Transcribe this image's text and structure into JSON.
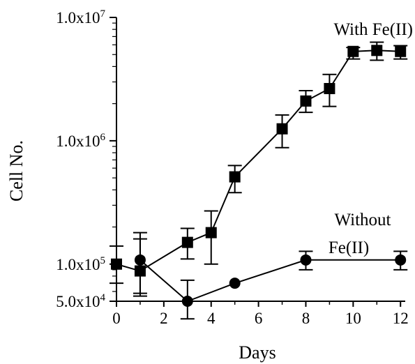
{
  "chart_data": {
    "type": "line",
    "xlabel": "Days",
    "ylabel": "Cell No.",
    "xlim": [
      0,
      12.2
    ],
    "ylim": [
      50000,
      10000000
    ],
    "yscale": "log",
    "xticks": [
      0,
      2,
      4,
      6,
      8,
      10,
      12
    ],
    "yticks": [
      {
        "value": 50000,
        "label": "5.0x10"
      },
      {
        "value": 100000,
        "label": "1.0x10"
      },
      {
        "value": 1000000,
        "label": "1.0x10"
      },
      {
        "value": 10000000,
        "label": "1.0x10"
      }
    ],
    "ytick_exponents": [
      "4",
      "5",
      "6",
      "7"
    ],
    "grid": false,
    "series": [
      {
        "name": "With Fe(II)",
        "marker": "square",
        "points": [
          {
            "x": 0,
            "y": 100000,
            "ylo": 70000,
            "yhi": 140000
          },
          {
            "x": 1,
            "y": 88000,
            "ylo": 55000,
            "yhi": 180000
          },
          {
            "x": 3,
            "y": 150000,
            "ylo": 110000,
            "yhi": 195000
          },
          {
            "x": 4,
            "y": 180000,
            "ylo": 100000,
            "yhi": 270000
          },
          {
            "x": 5,
            "y": 510000,
            "ylo": 380000,
            "yhi": 630000
          },
          {
            "x": 7,
            "y": 1250000,
            "ylo": 880000,
            "yhi": 1620000
          },
          {
            "x": 8,
            "y": 2100000,
            "ylo": 1700000,
            "yhi": 2550000
          },
          {
            "x": 9,
            "y": 2650000,
            "ylo": 1900000,
            "yhi": 3450000
          },
          {
            "x": 10,
            "y": 5300000,
            "ylo": 4600000,
            "yhi": 5700000
          },
          {
            "x": 11,
            "y": 5400000,
            "ylo": 4500000,
            "yhi": 6300000
          },
          {
            "x": 12,
            "y": 5300000,
            "ylo": 4600000,
            "yhi": 5900000
          }
        ]
      },
      {
        "name": "Without Fe(II)",
        "name_lines": [
          "Without",
          "Fe(II)"
        ],
        "marker": "circle",
        "points": [
          {
            "x": 1,
            "y": 108000,
            "ylo": 58000,
            "yhi": 160000
          },
          {
            "x": 3,
            "y": 50000,
            "ylo": 36000,
            "yhi": 74000
          },
          {
            "x": 5,
            "y": 70000,
            "ylo": null,
            "yhi": null
          },
          {
            "x": 8,
            "y": 108000,
            "ylo": 90000,
            "yhi": 127000
          },
          {
            "x": 12,
            "y": 108000,
            "ylo": 90000,
            "yhi": 127000
          }
        ]
      }
    ]
  }
}
